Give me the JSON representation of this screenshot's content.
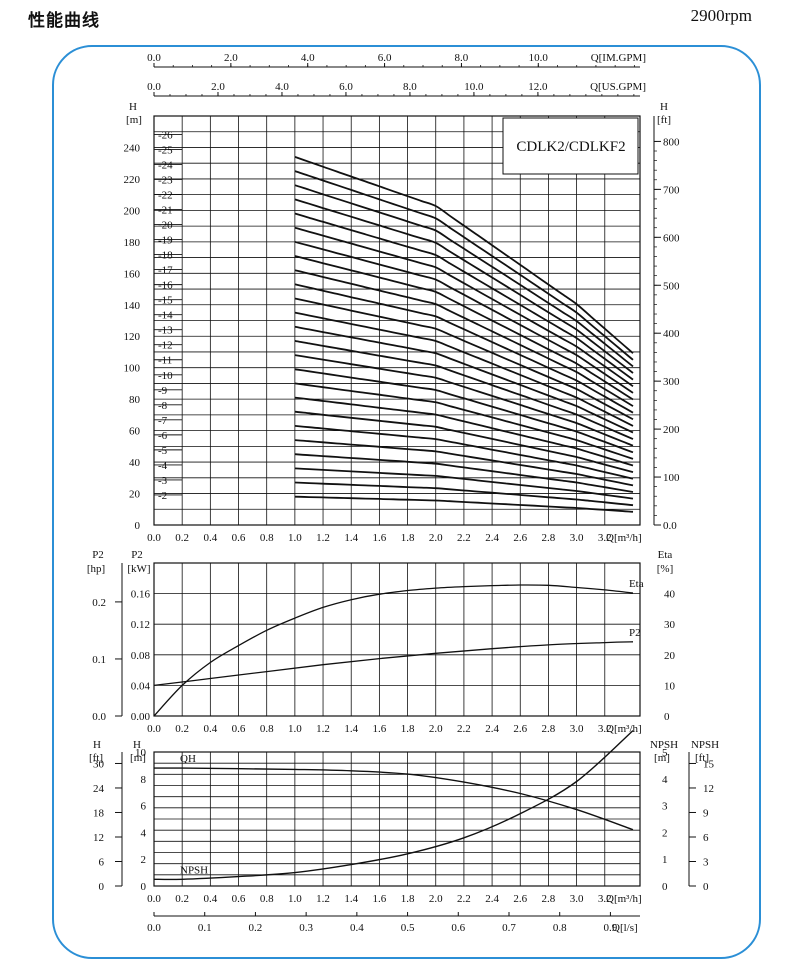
{
  "header": {
    "title": "性能曲线",
    "speed": "2900rpm"
  },
  "chart_data": [
    {
      "type": "line",
      "name": "head-chart",
      "label": "CDLK2/CDLKF2",
      "xlabel": "Q[m³/h]",
      "x_ticks": [
        "0.0",
        "0.2",
        "0.4",
        "0.6",
        "0.8",
        "1.0",
        "1.2",
        "1.4",
        "1.6",
        "1.8",
        "2.0",
        "2.2",
        "2.4",
        "2.6",
        "2.8",
        "3.0",
        "3.2"
      ],
      "xlim": [
        0,
        3.45
      ],
      "ylabel_left": "H",
      "yunit_left": "[m]",
      "ylabel_right": "H",
      "yunit_right": "[ft]",
      "ylim": [
        0,
        260
      ],
      "y_ticks_left": [
        "0",
        "20",
        "40",
        "60",
        "80",
        "100",
        "120",
        "140",
        "160",
        "180",
        "200",
        "220",
        "240"
      ],
      "y_ticks_right": [
        "0.0",
        "100",
        "200",
        "300",
        "400",
        "500",
        "600",
        "700",
        "800"
      ],
      "ft_per_m": 3.2808,
      "top_axis_im": {
        "label": "Q[IM.GPM]",
        "ticks": [
          "0.0",
          "2.0",
          "4.0",
          "6.0",
          "8.0",
          "10.0"
        ],
        "step": 2,
        "m3h_per_unit": 0.2728
      },
      "top_axis_us": {
        "label": "Q[US.GPM]",
        "ticks": [
          "0.0",
          "2.0",
          "4.0",
          "6.0",
          "8.0",
          "10.0",
          "12.0"
        ],
        "step": 2,
        "m3h_per_unit": 0.2271
      },
      "stages": [
        "-26",
        "-25",
        "-24",
        "-23",
        "-22",
        "-21",
        "-20",
        "-19",
        "-18",
        "-17",
        "-16",
        "-15",
        "-14",
        "-13",
        "-12",
        "-11",
        "-10",
        "-9",
        "-8",
        "-7",
        "-6",
        "-5",
        "-4",
        "-3",
        "-2"
      ],
      "curve_model": {
        "per_stage_head_at_q": {
          "x": [
            0.0,
            1.0,
            2.0,
            3.0,
            3.4
          ],
          "h": [
            9.55,
            9.0,
            7.8,
            5.4,
            4.2
          ]
        },
        "curve_start_q": 1.0,
        "curve_end_q": 3.4,
        "shutoff_line_end_q": 0.2
      }
    },
    {
      "type": "line",
      "name": "power-efficiency-chart",
      "xlabel": "Q[m³/h]",
      "x_ticks": [
        "0.0",
        "0.2",
        "0.4",
        "0.6",
        "0.8",
        "1.0",
        "1.2",
        "1.4",
        "1.6",
        "1.8",
        "2.0",
        "2.2",
        "2.4",
        "2.6",
        "2.8",
        "3.0",
        "3.2"
      ],
      "xlim": [
        0,
        3.45
      ],
      "left_outer": {
        "label": "P2",
        "unit": "[hp]",
        "ticks": [
          "0.0",
          "0.1",
          "0.2"
        ],
        "hp_per_kw": 1.341
      },
      "left_inner": {
        "label": "P2",
        "unit": "[kW]",
        "ticks": [
          "0.00",
          "0.04",
          "0.08",
          "0.12",
          "0.16"
        ],
        "ylim": [
          0,
          0.2
        ]
      },
      "right": {
        "label": "Eta",
        "unit": "[%]",
        "ticks": [
          "0",
          "10",
          "20",
          "30",
          "40"
        ],
        "ylim": [
          0,
          50
        ]
      },
      "series": [
        {
          "name": "Eta",
          "axis": "right",
          "x": [
            0.0,
            0.2,
            0.4,
            0.6,
            0.8,
            1.0,
            1.2,
            1.4,
            1.6,
            1.8,
            2.0,
            2.2,
            2.4,
            2.6,
            2.8,
            3.0,
            3.2,
            3.4
          ],
          "y": [
            0,
            10,
            17.5,
            23,
            28,
            32,
            35.5,
            38,
            39.8,
            41,
            41.8,
            42.3,
            42.6,
            42.8,
            42.7,
            42,
            41.2,
            40.2
          ]
        },
        {
          "name": "P2",
          "axis": "left_inner",
          "x": [
            0.0,
            0.4,
            0.8,
            1.2,
            1.6,
            2.0,
            2.4,
            2.8,
            3.2,
            3.4
          ],
          "y": [
            0.04,
            0.049,
            0.058,
            0.067,
            0.075,
            0.082,
            0.088,
            0.093,
            0.096,
            0.097
          ]
        }
      ]
    },
    {
      "type": "line",
      "name": "qh-npsh-chart",
      "xlabel": "Q[m³/h]",
      "x_ticks": [
        "0.0",
        "0.2",
        "0.4",
        "0.6",
        "0.8",
        "1.0",
        "1.2",
        "1.4",
        "1.6",
        "1.8",
        "2.0",
        "2.2",
        "2.4",
        "2.6",
        "2.8",
        "3.0",
        "3.2"
      ],
      "xlim": [
        0,
        3.45
      ],
      "left_outer": {
        "label": "H",
        "unit": "[ft]",
        "ticks": [
          "0",
          "6",
          "12",
          "18",
          "24",
          "30"
        ]
      },
      "left_inner": {
        "label": "H",
        "unit": "[m]",
        "ticks": [
          "0",
          "2",
          "4",
          "6",
          "8",
          "10"
        ],
        "ylim": [
          0,
          10
        ]
      },
      "right_inner": {
        "label": "NPSH",
        "unit": "[m]",
        "ticks": [
          "0",
          "1",
          "2",
          "3",
          "4",
          "5"
        ],
        "ylim": [
          0,
          5
        ]
      },
      "right_outer": {
        "label": "NPSH",
        "unit": "[ft]",
        "ticks": [
          "0",
          "3",
          "6",
          "9",
          "12",
          "15"
        ]
      },
      "series": [
        {
          "name": "QH",
          "axis": "left_inner",
          "x": [
            0.0,
            0.2,
            1.0,
            1.4,
            1.8,
            2.2,
            2.6,
            3.0,
            3.4
          ],
          "y": [
            8.8,
            8.8,
            8.7,
            8.6,
            8.35,
            7.75,
            6.9,
            5.7,
            4.2
          ]
        },
        {
          "name": "NPSH",
          "axis": "right_inner",
          "x": [
            0.0,
            0.2,
            0.6,
            1.0,
            1.4,
            1.8,
            2.2,
            2.6,
            3.0,
            3.4
          ],
          "y": [
            0.25,
            0.25,
            0.35,
            0.5,
            0.8,
            1.2,
            1.8,
            2.7,
            3.9,
            5.8
          ]
        }
      ],
      "bottom_axis": {
        "label": "Q[l/s]",
        "ticks": [
          "0.0",
          "0.1",
          "0.2",
          "0.3",
          "0.4",
          "0.5",
          "0.6",
          "0.7",
          "0.8",
          "0.9"
        ],
        "m3h_per_unit": 3.6
      }
    }
  ]
}
